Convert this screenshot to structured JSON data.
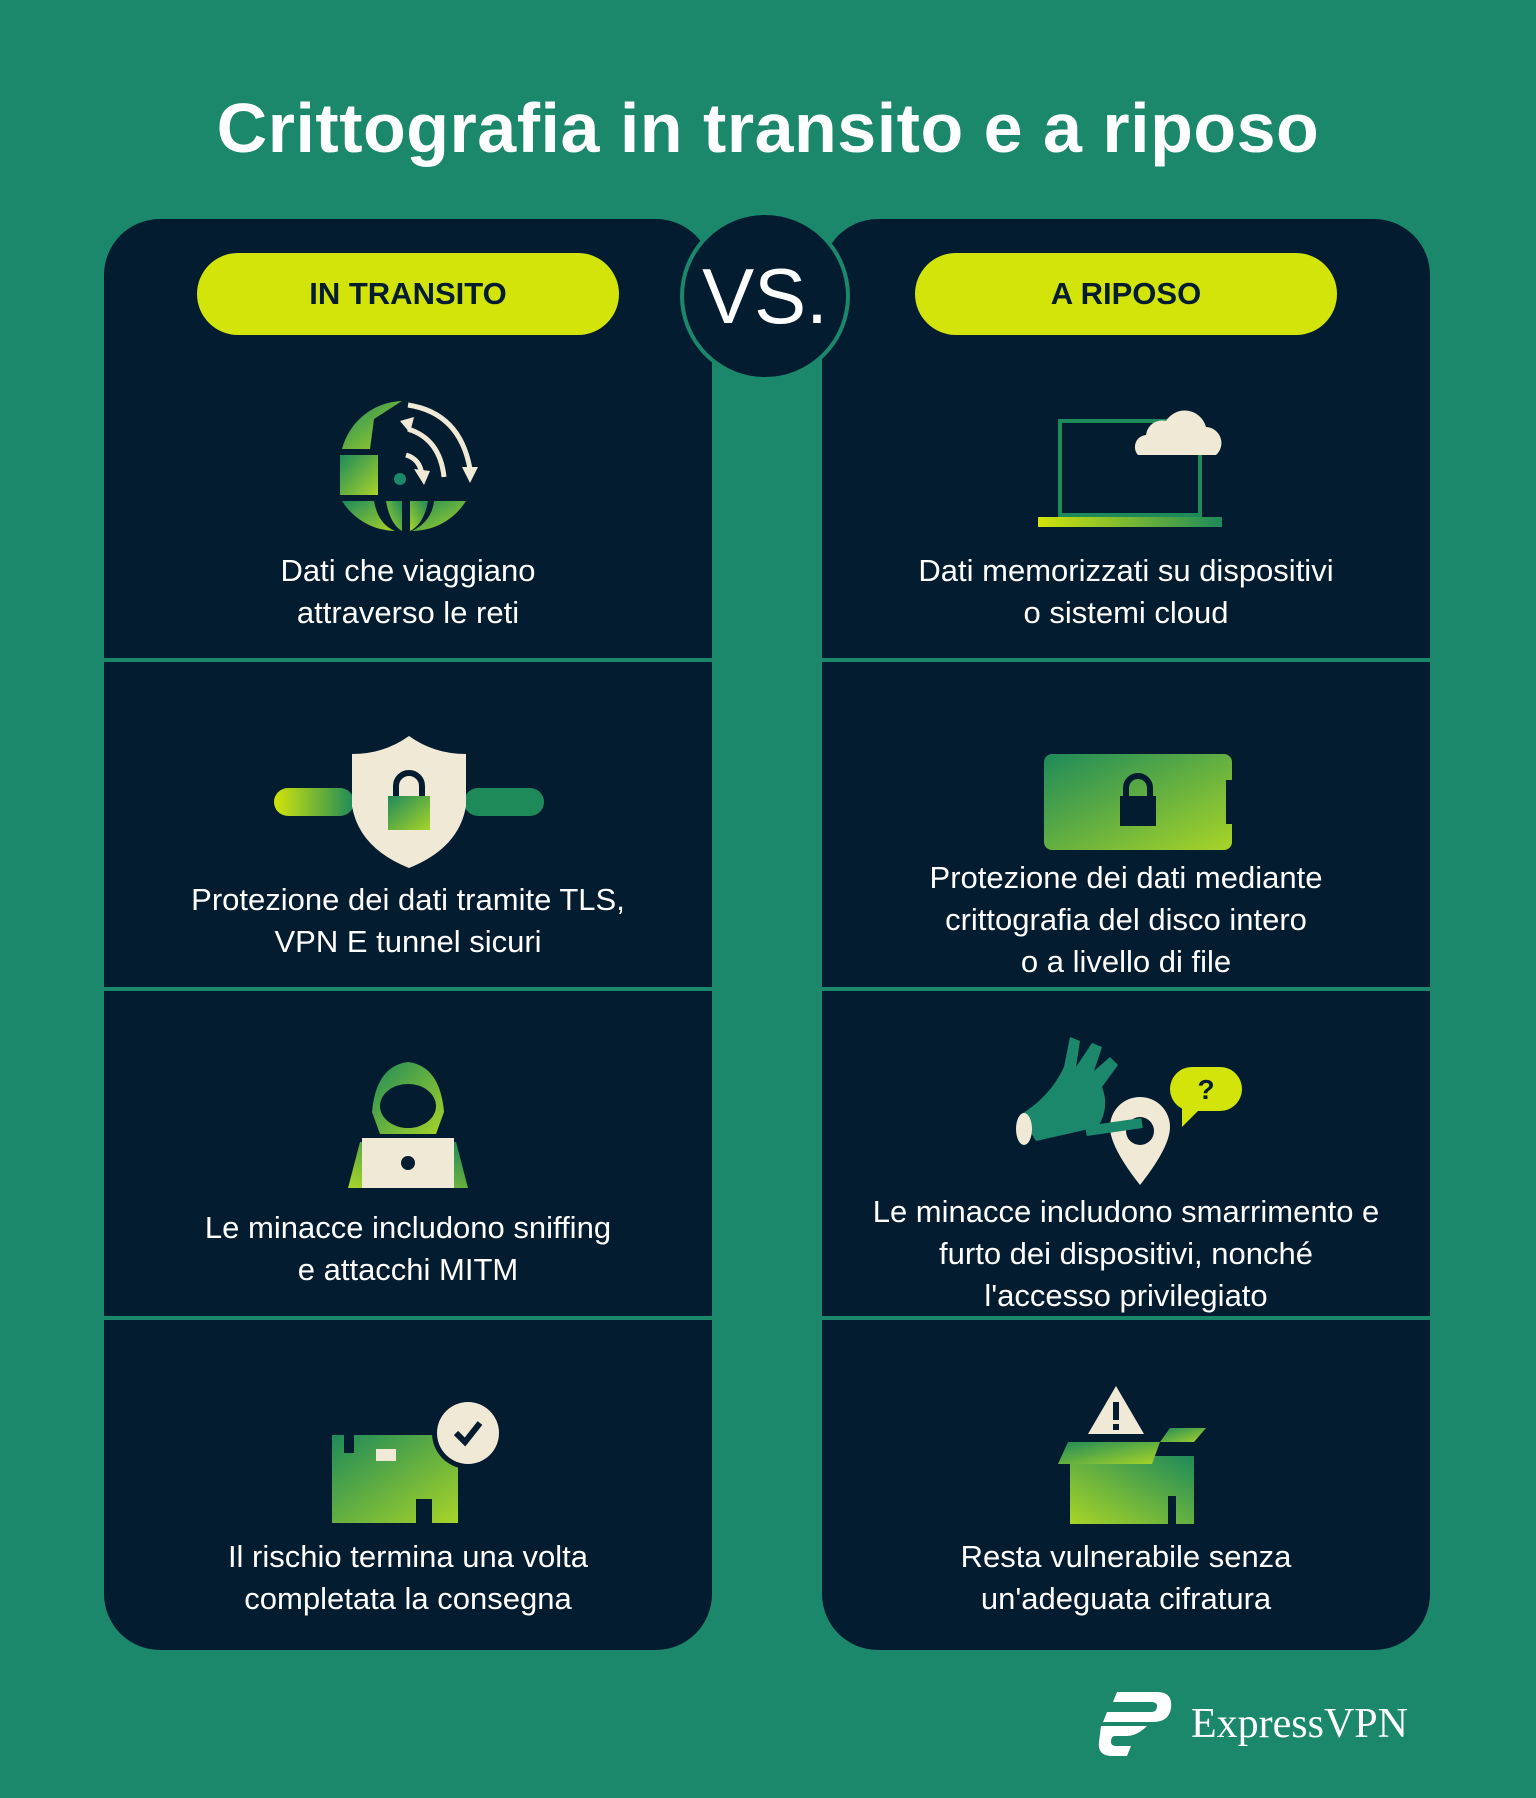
{
  "title": "Crittografia in transito e a riposo",
  "vs_label": "VS.",
  "colors": {
    "background": "#1b876b",
    "panel": "#041c30",
    "pill": "#d2e40a",
    "cream": "#efe9d6"
  },
  "left": {
    "heading": "IN TRANSITO",
    "rows": [
      {
        "icon": "globe-arrows-icon",
        "lines": [
          "Dati che viaggiano",
          "attraverso le reti"
        ]
      },
      {
        "icon": "shield-lock-tunnel-icon",
        "lines": [
          "Protezione dei dati tramite TLS,",
          "VPN E tunnel sicuri"
        ]
      },
      {
        "icon": "hooded-hacker-laptop-icon",
        "lines": [
          "Le minacce includono sniffing",
          "e attacchi MITM"
        ]
      },
      {
        "icon": "delivered-package-check-icon",
        "lines": [
          "Il rischio termina una volta",
          "completata la consegna"
        ]
      }
    ]
  },
  "right": {
    "heading": "A RIPOSO",
    "rows": [
      {
        "icon": "laptop-cloud-icon",
        "lines": [
          "Dati memorizzati su dispositivi",
          "o sistemi cloud"
        ]
      },
      {
        "icon": "locked-drive-icon",
        "lines": [
          "Protezione dei dati mediante",
          "crittografia del disco intero",
          "o a livello di file"
        ]
      },
      {
        "icon": "hand-location-question-icon",
        "lines": [
          "Le minacce includono smarrimento e",
          "furto dei dispositivi, nonché",
          "l'accesso privilegiato"
        ]
      },
      {
        "icon": "open-box-warning-icon",
        "lines": [
          "Resta vulnerabile senza",
          "un'adeguata cifratura"
        ]
      }
    ]
  },
  "brand": {
    "name": "ExpressVPN",
    "icon": "expressvpn-logo-icon"
  }
}
